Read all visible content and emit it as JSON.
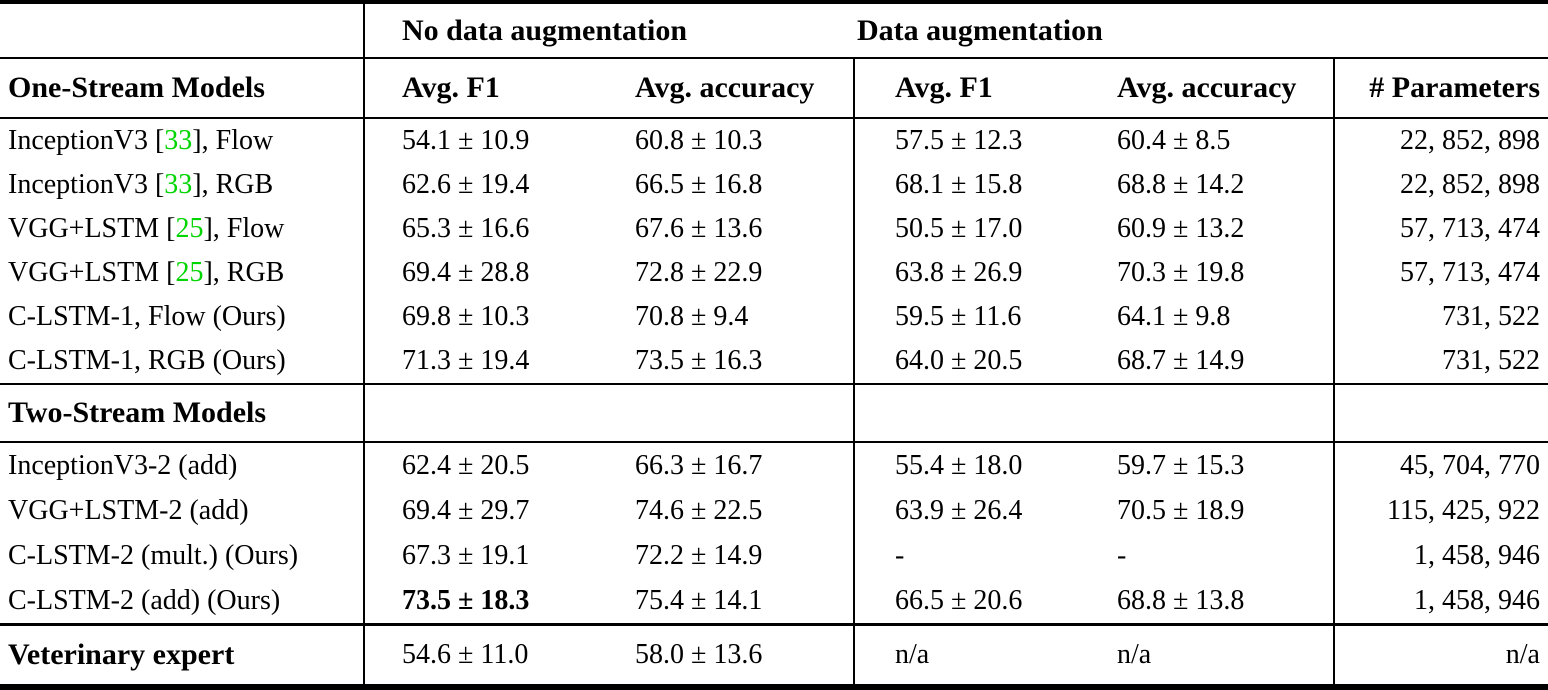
{
  "table": {
    "colors": {
      "citation_green": "#00d500",
      "text": "#000000",
      "background": "#ffffff"
    },
    "group_headers": {
      "no_aug": "No data augmentation",
      "aug": "Data augmentation"
    },
    "columns": {
      "f1_noaug": "Avg. F1",
      "acc_noaug": "Avg. accuracy",
      "f1_aug": "Avg. F1",
      "acc_aug": "Avg. accuracy",
      "params": "# Parameters"
    },
    "sections": [
      {
        "label": "One-Stream Models",
        "rows": [
          {
            "name_pre": "InceptionV3 [",
            "cite": "33",
            "name_post": "], Flow",
            "f1": "54.1 ± 10.9",
            "acc": "60.8 ± 10.3",
            "f1_aug": "57.5 ± 12.3",
            "acc_aug": "60.4 ± 8.5",
            "params": "22, 852, 898"
          },
          {
            "name_pre": "InceptionV3 [",
            "cite": "33",
            "name_post": "], RGB",
            "f1": "62.6 ± 19.4",
            "acc": "66.5 ± 16.8",
            "f1_aug": "68.1 ± 15.8",
            "acc_aug": "68.8 ± 14.2",
            "params": "22, 852, 898"
          },
          {
            "name_pre": "VGG+LSTM [",
            "cite": "25",
            "name_post": "], Flow",
            "f1": "65.3 ± 16.6",
            "acc": "67.6 ± 13.6",
            "f1_aug": "50.5 ± 17.0",
            "acc_aug": "60.9 ± 13.2",
            "params": "57, 713, 474"
          },
          {
            "name_pre": "VGG+LSTM [",
            "cite": "25",
            "name_post": "], RGB",
            "f1": "69.4 ± 28.8",
            "acc": "72.8 ± 22.9",
            "f1_aug": "63.8 ± 26.9",
            "acc_aug": "70.3 ± 19.8",
            "params": "57, 713, 474"
          },
          {
            "name_pre": "C-LSTM-1, Flow (Ours)",
            "cite": "",
            "name_post": "",
            "f1": "69.8 ± 10.3",
            "acc": "70.8 ± 9.4",
            "f1_aug": "59.5 ± 11.6",
            "acc_aug": "64.1 ± 9.8",
            "params": "731, 522"
          },
          {
            "name_pre": "C-LSTM-1, RGB (Ours)",
            "cite": "",
            "name_post": "",
            "f1": "71.3 ± 19.4",
            "acc": "73.5 ± 16.3",
            "f1_aug": "64.0 ± 20.5",
            "acc_aug": "68.7 ± 14.9",
            "params": "731, 522"
          }
        ]
      },
      {
        "label": "Two-Stream Models",
        "rows": [
          {
            "name_pre": "InceptionV3-2 (add)",
            "cite": "",
            "name_post": "",
            "f1": "62.4 ± 20.5",
            "acc": "66.3 ± 16.7",
            "f1_aug": "55.4 ± 18.0",
            "acc_aug": "59.7 ± 15.3",
            "params": "45, 704, 770"
          },
          {
            "name_pre": "VGG+LSTM-2 (add)",
            "cite": "",
            "name_post": "",
            "f1": "69.4 ± 29.7",
            "acc": "74.6 ± 22.5",
            "f1_aug": "63.9 ± 26.4",
            "acc_aug": "70.5 ± 18.9",
            "params": "115, 425, 922"
          },
          {
            "name_pre": "C-LSTM-2 (mult.) (Ours)",
            "cite": "",
            "name_post": "",
            "f1": "67.3 ± 19.1",
            "acc": "72.2 ± 14.9",
            "f1_aug": "-",
            "acc_aug": "-",
            "params": "1, 458, 946"
          },
          {
            "name_pre": "C-LSTM-2 (add) (Ours)",
            "cite": "",
            "name_post": "",
            "f1": "73.5 ± 18.3",
            "acc": "75.4 ± 14.1",
            "f1_aug": "66.5 ± 20.6",
            "acc_aug": "68.8 ± 13.8",
            "params": "1, 458, 946"
          }
        ]
      }
    ],
    "footer": {
      "label": "Veterinary expert",
      "f1": "54.6 ± 11.0",
      "acc": "58.0 ± 13.6",
      "f1_aug": "n/a",
      "acc_aug": "n/a",
      "params": "n/a"
    }
  }
}
